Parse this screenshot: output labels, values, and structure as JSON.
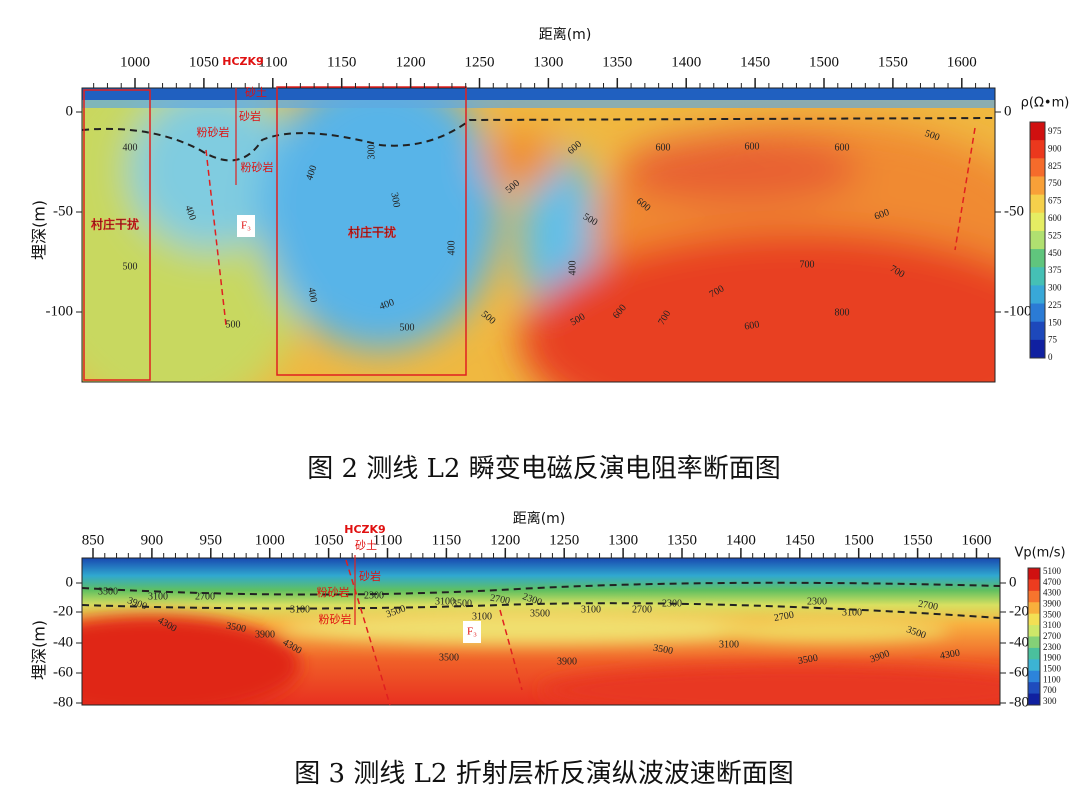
{
  "figure_2": {
    "x_axis_label": "距离(m)",
    "x_ticks": [
      1000,
      1050,
      1100,
      1150,
      1200,
      1250,
      1300,
      1350,
      1400,
      1450,
      1500,
      1550,
      1600
    ],
    "y_axis_label": "埋深(m)",
    "y_ticks": [
      0,
      -50,
      -100
    ],
    "colorbar_label": "ρ(Ω•m)",
    "colorbar_ticks": [
      975,
      900,
      825,
      750,
      675,
      600,
      525,
      450,
      375,
      300,
      225,
      150,
      75,
      0
    ],
    "borehole": "HCZK9",
    "strata": [
      "砂土",
      "砂岩",
      "粉砂岩",
      "粉砂岩"
    ],
    "fault": "F₃",
    "annotations": [
      "村庄干扰",
      "村庄干扰"
    ],
    "contour_labels": [
      400,
      400,
      500,
      500,
      400,
      300,
      300,
      400,
      400,
      400,
      500,
      500,
      500,
      600,
      500,
      600,
      400,
      500,
      600,
      700,
      600,
      600,
      600,
      500,
      600,
      700,
      700,
      700,
      600,
      800
    ],
    "caption": "图 2 测线 L2 瞬变电磁反演电阻率断面图"
  },
  "figure_3": {
    "x_axis_label": "距离(m)",
    "x_ticks": [
      850,
      900,
      950,
      1000,
      1050,
      1100,
      1150,
      1200,
      1250,
      1300,
      1350,
      1400,
      1450,
      1500,
      1550,
      1600
    ],
    "y_axis_label": "埋深(m)",
    "y_ticks": [
      0,
      -20,
      -40,
      -60,
      -80
    ],
    "colorbar_label": "Vp(m/s)",
    "colorbar_ticks": [
      5100,
      4700,
      4300,
      3900,
      3500,
      3100,
      2700,
      2300,
      1900,
      1500,
      1100,
      700,
      300
    ],
    "borehole": "HCZK9",
    "strata": [
      "砂土",
      "砂岩",
      "粉砂岩",
      "粉砂岩"
    ],
    "fault": "F₃",
    "contour_labels": [
      3500,
      3900,
      3100,
      2700,
      4300,
      3100,
      3500,
      3900,
      4300,
      2300,
      3500,
      3100,
      3500,
      3100,
      2700,
      2300,
      3500,
      3100,
      2700,
      2300,
      3500,
      3900,
      3500,
      3100,
      2700,
      2300,
      3100,
      2700,
      3500,
      3500,
      3900,
      4300
    ],
    "caption": "图 3 测线 L2 折射层析反演纵波波速断面图"
  }
}
